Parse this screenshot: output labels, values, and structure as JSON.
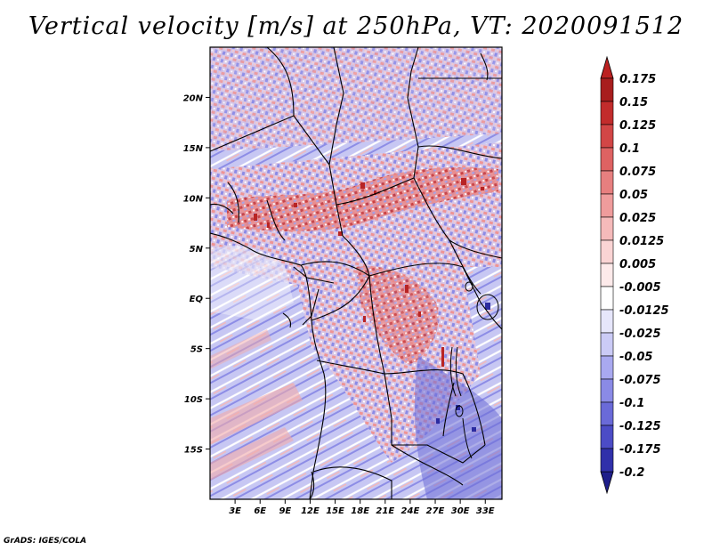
{
  "title": "Vertical velocity [m/s] at 250hPa, VT: 2020091512",
  "credit": "GrADS: IGES/COLA",
  "map": {
    "region": "Central Africa",
    "variable": "Vertical velocity",
    "units": "m/s",
    "level": "250hPa",
    "valid_time": "2020091512",
    "lon_range": [
      0,
      35
    ],
    "lat_range": [
      -20,
      25
    ],
    "lon_ticks": [
      {
        "value": 3,
        "label": "3E"
      },
      {
        "value": 6,
        "label": "6E"
      },
      {
        "value": 9,
        "label": "9E"
      },
      {
        "value": 12,
        "label": "12E"
      },
      {
        "value": 15,
        "label": "15E"
      },
      {
        "value": 18,
        "label": "18E"
      },
      {
        "value": 21,
        "label": "21E"
      },
      {
        "value": 24,
        "label": "24E"
      },
      {
        "value": 27,
        "label": "27E"
      },
      {
        "value": 30,
        "label": "30E"
      },
      {
        "value": 33,
        "label": "33E"
      }
    ],
    "lat_ticks": [
      {
        "value": 20,
        "label": "20N"
      },
      {
        "value": 15,
        "label": "15N"
      },
      {
        "value": 10,
        "label": "10N"
      },
      {
        "value": 5,
        "label": "5N"
      },
      {
        "value": 0,
        "label": "EQ"
      },
      {
        "value": -5,
        "label": "5S"
      },
      {
        "value": -10,
        "label": "10S"
      },
      {
        "value": -15,
        "label": "15S"
      }
    ]
  },
  "colorbar": {
    "levels": [
      {
        "label": "0.175",
        "color": "#a81e1e"
      },
      {
        "label": "0.15",
        "color": "#c22c2c"
      },
      {
        "label": "0.125",
        "color": "#d24646"
      },
      {
        "label": "0.1",
        "color": "#de6262"
      },
      {
        "label": "0.075",
        "color": "#e77f7f"
      },
      {
        "label": "0.05",
        "color": "#ef9c9c"
      },
      {
        "label": "0.025",
        "color": "#f5baba"
      },
      {
        "label": "0.0125",
        "color": "#fad4d4"
      },
      {
        "label": "0.005",
        "color": "#fdeaea"
      },
      {
        "label": "-0.005",
        "color": "#ffffff"
      },
      {
        "label": "-0.0125",
        "color": "#e6e6fb"
      },
      {
        "label": "-0.025",
        "color": "#cbcbf6"
      },
      {
        "label": "-0.05",
        "color": "#a9a9f0"
      },
      {
        "label": "-0.075",
        "color": "#8a8ae6"
      },
      {
        "label": "-0.1",
        "color": "#6a6ad8"
      },
      {
        "label": "-0.125",
        "color": "#4c4cc6"
      },
      {
        "label": "-0.175",
        "color": "#3030aa"
      },
      {
        "label": "-0.2",
        "color": "#1c1c88"
      }
    ],
    "top_color": "#bb2121",
    "bottom_color": "#1e1e8a"
  }
}
